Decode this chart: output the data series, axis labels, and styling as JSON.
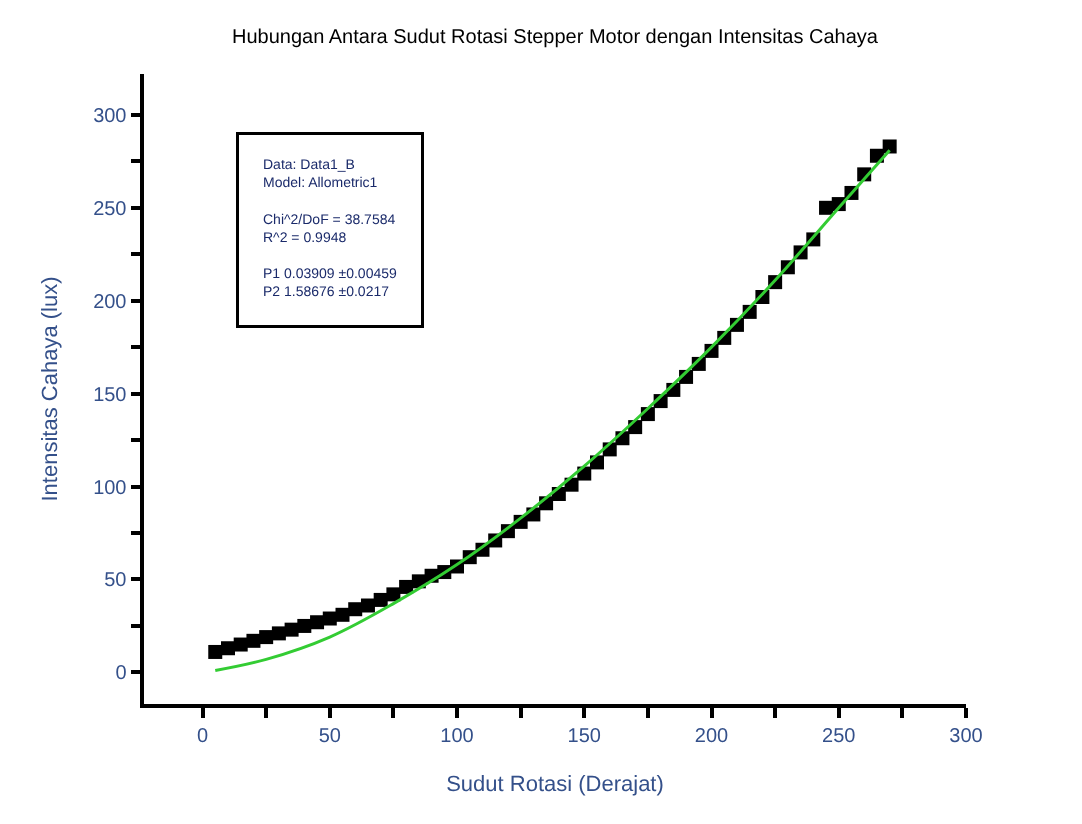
{
  "chart_data": {
    "type": "scatter",
    "title": "Hubungan Antara Sudut Rotasi Stepper Motor dengan Intensitas Cahaya",
    "xlabel": "Sudut Rotasi (Derajat)",
    "ylabel": "Intensitas Cahaya (lux)",
    "xlim": [
      -23,
      300
    ],
    "ylim": [
      -17,
      322
    ],
    "xticks": [
      0,
      {
        "value": 25,
        "label": null
      },
      50,
      {
        "value": 75,
        "label": null
      },
      100,
      {
        "value": 125,
        "label": null
      },
      150,
      {
        "value": 175,
        "label": null
      },
      200,
      {
        "value": 225,
        "label": null
      },
      250,
      {
        "value": 275,
        "label": null
      },
      300
    ],
    "yticks": [
      0,
      {
        "value": 25,
        "label": null
      },
      50,
      {
        "value": 75,
        "label": null
      },
      100,
      {
        "value": 125,
        "label": null
      },
      150,
      {
        "value": 175,
        "label": null
      },
      200,
      {
        "value": 225,
        "label": null
      },
      250,
      {
        "value": 275,
        "label": null
      },
      300
    ],
    "legend": false,
    "marker": "square",
    "annotations": [
      "Data: Data1_B",
      "Model: Allometric1",
      "Chi^2/DoF = 38.7584",
      "R^2 = 0.9948",
      "P1 0.03909 ±0.00459",
      "P2 1.58676 ±0.0217"
    ],
    "series": [
      {
        "color": "#000000",
        "x": [
          5,
          10,
          15,
          20,
          25,
          30,
          35,
          40,
          45,
          50,
          55,
          60,
          65,
          70,
          75,
          80,
          85,
          90,
          95,
          100,
          105,
          110,
          115,
          120,
          125,
          130,
          135,
          140,
          145,
          150,
          155,
          160,
          165,
          170,
          175,
          180,
          185,
          190,
          195,
          200,
          205,
          210,
          215,
          220,
          225,
          230,
          235,
          240,
          245,
          250,
          255,
          260,
          265,
          270
        ],
        "values": [
          11,
          13,
          15,
          17,
          19,
          21,
          23,
          25,
          27,
          29,
          31,
          34,
          36,
          39,
          42,
          46,
          49,
          52,
          54,
          57,
          62,
          66,
          71,
          76,
          81,
          85,
          91,
          96,
          101,
          107,
          113,
          120,
          126,
          132,
          139,
          146,
          152,
          159,
          166,
          173,
          180,
          187,
          194,
          202,
          210,
          218,
          226,
          233,
          250,
          252,
          258,
          268,
          278,
          283
        ]
      },
      {
        "type": "line",
        "color": "#33cc33",
        "marker": "none",
        "line_style": "solid",
        "x": [
          5,
          25,
          50,
          75,
          100,
          125,
          150,
          175,
          200,
          225,
          250,
          270
        ],
        "values": [
          1,
          7,
          19,
          37,
          58,
          83,
          111,
          142,
          175,
          211,
          250,
          281
        ]
      }
    ]
  }
}
